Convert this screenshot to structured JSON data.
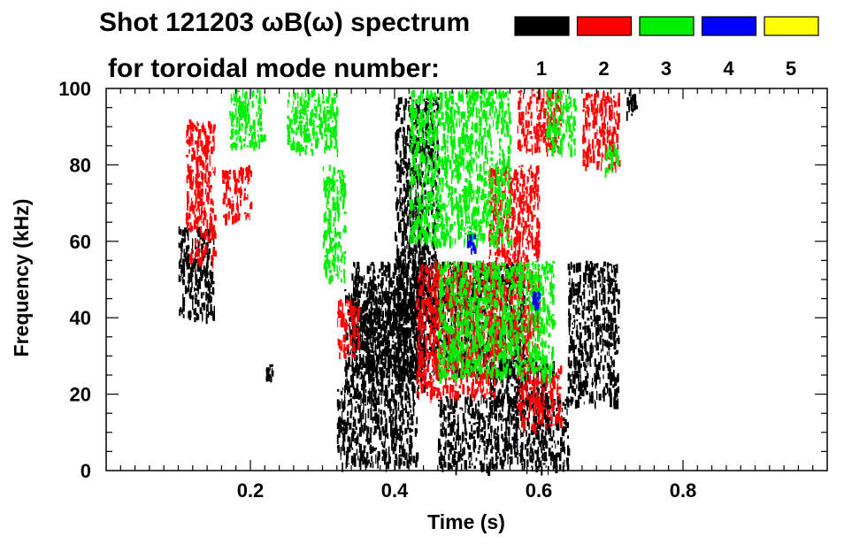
{
  "chart_data": {
    "type": "scatter",
    "title": [
      "Shot 121203 ωB(ω) spectrum",
      "for toroidal mode number:"
    ],
    "xlabel": "Time (s)",
    "ylabel": "Frequency (kHz)",
    "xlim": [
      0.0,
      1.0
    ],
    "ylim": [
      0,
      100
    ],
    "x_ticks": [
      0.2,
      0.4,
      0.6,
      0.8
    ],
    "y_ticks": [
      0,
      20,
      40,
      60,
      80,
      100
    ],
    "grid": false,
    "legend_position": "top-right",
    "legend": [
      {
        "label": "1",
        "color": "#000000"
      },
      {
        "label": "2",
        "color": "#ff0000"
      },
      {
        "label": "3",
        "color": "#00ee00"
      },
      {
        "label": "4",
        "color": "#0000ff"
      },
      {
        "label": "5",
        "color": "#ffff00"
      }
    ],
    "series": [
      {
        "mode": "1",
        "color": "#000000",
        "regions": [
          {
            "x": [
              0.1,
              0.15
            ],
            "y": [
              40,
              64
            ]
          },
          {
            "x": [
              0.32,
              0.43
            ],
            "y": [
              2,
              22
            ]
          },
          {
            "x": [
              0.33,
              0.44
            ],
            "y": [
              20,
              48
            ]
          },
          {
            "x": [
              0.46,
              0.64
            ],
            "y": [
              1,
              20
            ]
          },
          {
            "x": [
              0.53,
              0.62
            ],
            "y": [
              18,
              30
            ]
          },
          {
            "x": [
              0.34,
              0.58
            ],
            "y": [
              25,
              55
            ]
          },
          {
            "x": [
              0.4,
              0.46
            ],
            "y": [
              40,
              98
            ]
          },
          {
            "x": [
              0.64,
              0.71
            ],
            "y": [
              18,
              55
            ]
          },
          {
            "x": [
              0.72,
              0.735
            ],
            "y": [
              93,
              100
            ]
          },
          {
            "x": [
              0.22,
              0.23
            ],
            "y": [
              24,
              28
            ]
          }
        ]
      },
      {
        "mode": "2",
        "color": "#ff0000",
        "regions": [
          {
            "x": [
              0.11,
              0.15
            ],
            "y": [
              55,
              92
            ]
          },
          {
            "x": [
              0.16,
              0.2
            ],
            "y": [
              66,
              80
            ]
          },
          {
            "x": [
              0.32,
              0.35
            ],
            "y": [
              30,
              45
            ]
          },
          {
            "x": [
              0.43,
              0.54
            ],
            "y": [
              20,
              55
            ]
          },
          {
            "x": [
              0.53,
              0.6
            ],
            "y": [
              30,
              80
            ]
          },
          {
            "x": [
              0.57,
              0.63
            ],
            "y": [
              12,
              28
            ]
          },
          {
            "x": [
              0.57,
              0.63
            ],
            "y": [
              84,
              100
            ]
          },
          {
            "x": [
              0.66,
              0.71
            ],
            "y": [
              80,
              100
            ]
          }
        ]
      },
      {
        "mode": "3",
        "color": "#00ee00",
        "regions": [
          {
            "x": [
              0.17,
              0.22
            ],
            "y": [
              85,
              100
            ]
          },
          {
            "x": [
              0.25,
              0.32
            ],
            "y": [
              84,
              100
            ]
          },
          {
            "x": [
              0.3,
              0.33
            ],
            "y": [
              50,
              80
            ]
          },
          {
            "x": [
              0.42,
              0.56
            ],
            "y": [
              60,
              100
            ]
          },
          {
            "x": [
              0.46,
              0.62
            ],
            "y": [
              25,
              55
            ]
          },
          {
            "x": [
              0.61,
              0.65
            ],
            "y": [
              84,
              100
            ]
          },
          {
            "x": [
              0.69,
              0.71
            ],
            "y": [
              78,
              86
            ]
          }
        ]
      },
      {
        "mode": "4",
        "color": "#0000ff",
        "regions": [
          {
            "x": [
              0.59,
              0.6
            ],
            "y": [
              43,
              47
            ]
          },
          {
            "x": [
              0.5,
              0.51
            ],
            "y": [
              58,
              62
            ]
          }
        ]
      },
      {
        "mode": "5",
        "color": "#ffff00",
        "regions": []
      }
    ]
  }
}
